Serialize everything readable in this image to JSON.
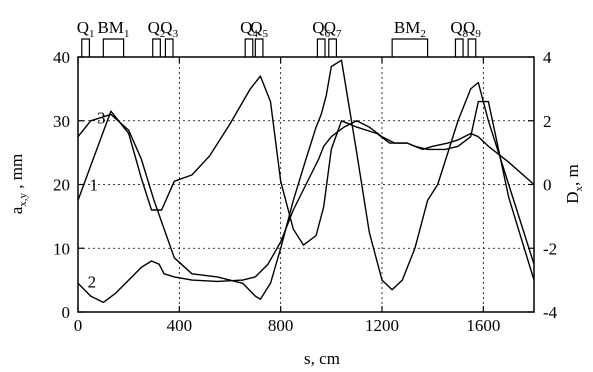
{
  "chart_data": {
    "type": "line",
    "xlabel": "s, cm",
    "ylabel_left": "a",
    "ylabel_left_sub": "x,y",
    "ylabel_left_unit": " , mm",
    "ylabel_right": "D",
    "ylabel_right_sub": "x",
    "ylabel_right_unit": ", m",
    "xlim": [
      0,
      1800
    ],
    "ylim_left": [
      0,
      40
    ],
    "ylim_right": [
      -4,
      4
    ],
    "xticks": [
      0,
      400,
      800,
      1200,
      1600
    ],
    "yticks_left": [
      0,
      10,
      20,
      30,
      40
    ],
    "yticks_right": [
      -4,
      -2,
      0,
      2,
      4
    ],
    "grid": true,
    "elements": [
      {
        "name": "Q",
        "sub": "1",
        "s_start": 15,
        "s_end": 45
      },
      {
        "name": "BM",
        "sub": "1",
        "s_start": 100,
        "s_end": 180
      },
      {
        "name": "Q",
        "sub": "2",
        "s_start": 295,
        "s_end": 325
      },
      {
        "name": "Q",
        "sub": "3",
        "s_start": 345,
        "s_end": 375
      },
      {
        "name": "Q",
        "sub": "4",
        "s_start": 660,
        "s_end": 690
      },
      {
        "name": "Q",
        "sub": "5",
        "s_start": 700,
        "s_end": 730
      },
      {
        "name": "Q",
        "sub": "6",
        "s_start": 945,
        "s_end": 975
      },
      {
        "name": "Q",
        "sub": "7",
        "s_start": 990,
        "s_end": 1020
      },
      {
        "name": "BM",
        "sub": "2",
        "s_start": 1240,
        "s_end": 1380
      },
      {
        "name": "Q",
        "sub": "8",
        "s_start": 1490,
        "s_end": 1520
      },
      {
        "name": "Q",
        "sub": "9",
        "s_start": 1540,
        "s_end": 1570
      }
    ],
    "series": [
      {
        "name": "1",
        "axis": "left",
        "x": [
          0,
          60,
          130,
          200,
          250,
          290,
          330,
          380,
          450,
          520,
          600,
          680,
          720,
          760,
          800,
          850,
          890,
          940,
          970,
          1000,
          1040,
          1100,
          1180,
          1230,
          1260,
          1300,
          1360,
          1400,
          1460,
          1500,
          1550,
          1580,
          1620,
          1700,
          1800
        ],
        "y": [
          17.5,
          24,
          31.5,
          28,
          21,
          16,
          16,
          20.5,
          21.5,
          24.5,
          29.5,
          35,
          37,
          33,
          20.5,
          13,
          10.5,
          12,
          16.5,
          25.5,
          30,
          29,
          28,
          26.5,
          26.5,
          26.5,
          25.5,
          26,
          26.5,
          27,
          28,
          27.5,
          26,
          23.5,
          20
        ]
      },
      {
        "name": "2",
        "axis": "left",
        "x": [
          0,
          50,
          100,
          150,
          200,
          250,
          290,
          320,
          340,
          380,
          450,
          550,
          650,
          700,
          750,
          800,
          850,
          900,
          950,
          970,
          1000,
          1050,
          1100,
          1150,
          1200,
          1250,
          1300,
          1330,
          1380,
          1420,
          1450,
          1500,
          1550,
          1580,
          1620,
          1700,
          1800
        ],
        "y": [
          4.5,
          2.5,
          1.5,
          3,
          5,
          7,
          8,
          7.5,
          6,
          5.5,
          5,
          4.8,
          5,
          5.5,
          7.5,
          11,
          16,
          20,
          24,
          26,
          27.5,
          29,
          30,
          29,
          27.5,
          26.5,
          26.5,
          26,
          25.5,
          25.5,
          25.5,
          26,
          27.5,
          33,
          33,
          18,
          5
        ]
      },
      {
        "name": "3",
        "axis": "right",
        "x": [
          0,
          50,
          130,
          200,
          250,
          300,
          380,
          450,
          550,
          650,
          700,
          720,
          760,
          800,
          850,
          900,
          940,
          960,
          980,
          1000,
          1040,
          1100,
          1150,
          1200,
          1240,
          1280,
          1330,
          1380,
          1420,
          1460,
          1500,
          1550,
          1580,
          1620,
          1700,
          1800
        ],
        "y": [
          1.5,
          2,
          2.2,
          1.7,
          0.8,
          -0.5,
          -2.3,
          -2.8,
          -2.9,
          -3.1,
          -3.5,
          -3.6,
          -3.1,
          -2,
          -0.5,
          0.8,
          1.8,
          2.2,
          2.8,
          3.7,
          3.9,
          1,
          -1.5,
          -3,
          -3.3,
          -3,
          -2,
          -0.5,
          0,
          1,
          2,
          3,
          3.2,
          2,
          0,
          -2.5
        ]
      }
    ],
    "curve_labels": [
      {
        "text": "1",
        "x": 62,
        "y": 20
      },
      {
        "text": "2",
        "x": 55,
        "y": 4.8
      },
      {
        "text": "3",
        "x": 92,
        "y": 30.5
      }
    ]
  }
}
